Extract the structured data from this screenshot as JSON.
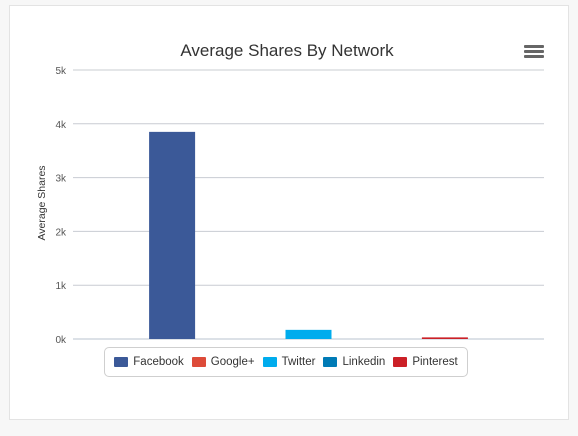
{
  "chart_data": {
    "type": "bar",
    "title": "Average Shares By Network",
    "ylabel": "Average Shares",
    "xlabel": "",
    "ylim": [
      0,
      5000
    ],
    "yticks": [
      {
        "value": 0,
        "label": "0k"
      },
      {
        "value": 1000,
        "label": "1k"
      },
      {
        "value": 2000,
        "label": "2k"
      },
      {
        "value": 3000,
        "label": "3k"
      },
      {
        "value": 4000,
        "label": "4k"
      },
      {
        "value": 5000,
        "label": "5k"
      }
    ],
    "grid": true,
    "legend_position": "bottom",
    "series": [
      {
        "name": "Facebook",
        "value": 3850,
        "color": "#3b5998"
      },
      {
        "name": "Google+",
        "value": 0,
        "color": "#dd4b39"
      },
      {
        "name": "Twitter",
        "value": 170,
        "color": "#00aced"
      },
      {
        "name": "Linkedin",
        "value": 0,
        "color": "#007bb6"
      },
      {
        "name": "Pinterest",
        "value": 30,
        "color": "#cb2027"
      }
    ]
  },
  "menu": {
    "icon": "hamburger-menu-icon"
  }
}
